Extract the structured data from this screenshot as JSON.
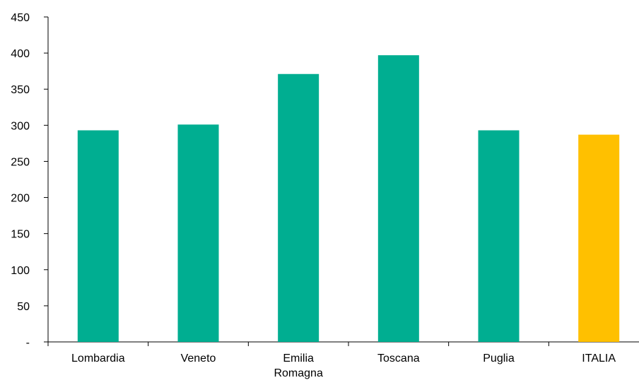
{
  "chart_data": {
    "type": "bar",
    "title": "",
    "xlabel": "",
    "ylabel": "",
    "categories": [
      "Lombardia",
      "Veneto",
      "Emilia Romagna",
      "Toscana",
      "Puglia",
      "ITALIA"
    ],
    "category_label_lines": [
      [
        "Lombardia"
      ],
      [
        "Veneto"
      ],
      [
        "Emilia",
        "Romagna"
      ],
      [
        "Toscana"
      ],
      [
        "Puglia"
      ],
      [
        "ITALIA"
      ]
    ],
    "values": [
      293,
      301,
      371,
      397,
      293,
      287
    ],
    "bar_colors": [
      "#00AE91",
      "#00AE91",
      "#00AE91",
      "#00AE91",
      "#00AE91",
      "#FFC000"
    ],
    "ylim": [
      0,
      450
    ],
    "y_ticks": [
      0,
      50,
      100,
      150,
      200,
      250,
      300,
      350,
      400,
      450
    ],
    "y_tick_labels": [
      "-",
      "50",
      "100",
      "150",
      "200",
      "250",
      "300",
      "350",
      "400",
      "450"
    ],
    "grid": false,
    "legend": "none"
  }
}
